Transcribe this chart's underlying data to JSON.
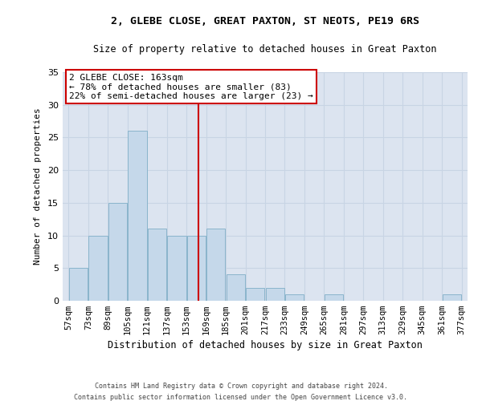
{
  "title1": "2, GLEBE CLOSE, GREAT PAXTON, ST NEOTS, PE19 6RS",
  "title2": "Size of property relative to detached houses in Great Paxton",
  "xlabel": "Distribution of detached houses by size in Great Paxton",
  "ylabel": "Number of detached properties",
  "footer1": "Contains HM Land Registry data © Crown copyright and database right 2024.",
  "footer2": "Contains public sector information licensed under the Open Government Licence v3.0.",
  "bin_labels": [
    "57sqm",
    "73sqm",
    "89sqm",
    "105sqm",
    "121sqm",
    "137sqm",
    "153sqm",
    "169sqm",
    "185sqm",
    "201sqm",
    "217sqm",
    "233sqm",
    "249sqm",
    "265sqm",
    "281sqm",
    "297sqm",
    "313sqm",
    "329sqm",
    "345sqm",
    "361sqm",
    "377sqm"
  ],
  "bar_values": [
    5,
    10,
    15,
    26,
    11,
    10,
    10,
    11,
    4,
    2,
    2,
    1,
    0,
    1,
    0,
    0,
    0,
    0,
    0,
    1,
    0
  ],
  "bar_color": "#c5d8ea",
  "bar_edge_color": "#8ab4cc",
  "grid_color": "#c8d4e4",
  "background_color": "#dce4f0",
  "vline_x_bin": 6,
  "vline_color": "#cc0000",
  "annotation_line1": "2 GLEBE CLOSE: 163sqm",
  "annotation_line2": "← 78% of detached houses are smaller (83)",
  "annotation_line3": "22% of semi-detached houses are larger (23) →",
  "annotation_box_color": "#ffffff",
  "annotation_box_edge_color": "#cc0000",
  "ylim": [
    0,
    35
  ],
  "yticks": [
    0,
    5,
    10,
    15,
    20,
    25,
    30,
    35
  ],
  "title1_fontsize": 9.5,
  "title2_fontsize": 8.5,
  "xlabel_fontsize": 8.5,
  "ylabel_fontsize": 8.0,
  "tick_fontsize": 7.5,
  "annotation_fontsize": 8.0,
  "footer_fontsize": 6.0
}
